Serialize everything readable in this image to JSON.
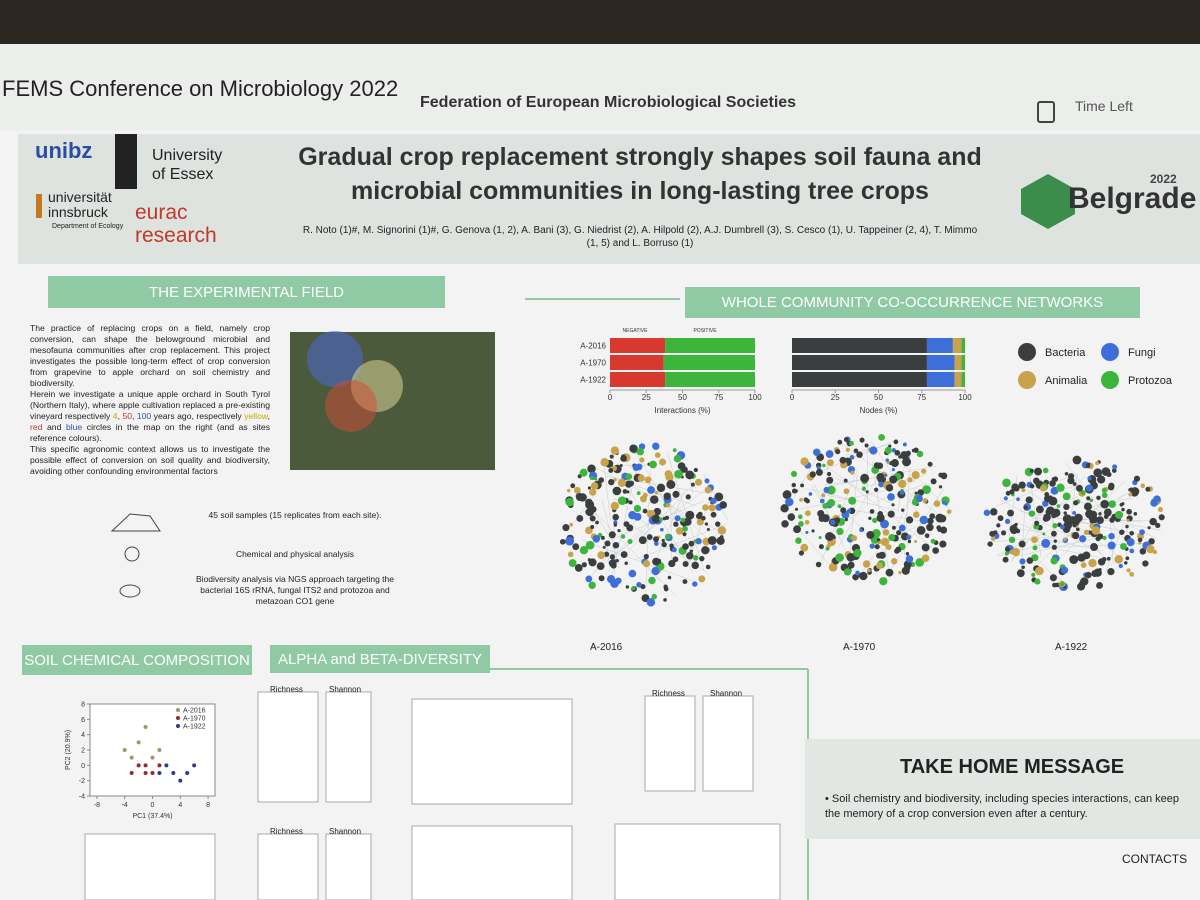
{
  "header": {
    "conference": "FEMS Conference on Microbiology 2022",
    "society": "Federation of European Microbiological Societies",
    "timer": "Time Left"
  },
  "poster": {
    "logos": {
      "unibz": "unibz",
      "essex": [
        "University",
        "of Essex"
      ],
      "innsbruck": [
        "universität",
        "innsbruck"
      ],
      "innsbruck_dept": "Department of Ecology",
      "eurac": [
        "eurac",
        "research"
      ]
    },
    "title": [
      "Gradual crop replacement strongly shapes soil fauna and",
      "microbial communities in long-lasting tree crops"
    ],
    "authors": "R. Noto (1)#, M. Signorini (1)#, G. Genova (1, 2), A. Bani (3), G. Niedrist (2), A. Hilpold (2), A.J. Dumbrell (3), S. Cesco (1), U. Tappeiner (2, 4), T. Mimmo (1, 5) and L. Borruso (1)",
    "event": {
      "year": "2022",
      "city": "Belgrade"
    },
    "field": {
      "heading": "THE EXPERIMENTAL FIELD",
      "intro": [
        "The practice of replacing crops on a field, namely crop conversion, can shape the belowground microbial and mesofauna communities after crop replacement. This project investigates the possible long-term effect of crop conversion from grapevine to apple orchard on soil chemistry and biodiversity.",
        "Herein we investigate a unique apple orchard in South Tyrol (Northern Italy), where apple cultivation replaced a pre-existing vineyard respectively ",
        "4",
        ", ",
        "50",
        ", ",
        "100",
        " years ago, respectively ",
        "yellow",
        ", ",
        "red",
        " and ",
        "blue",
        " circles in the map on the right (and as sites reference colours).",
        "This specific agronomic context allows us to investigate the possible effect of conversion on soil quality and biodiversity, avoiding other confounding environmental factors"
      ],
      "methods": [
        "45 soil samples (15 replicates from each site).",
        "Chemical and physical analysis",
        "Biodiversity analysis via NGS approach targeting the bacterial 16S rRNA, fungal ITS2 and protozoa and metazoan CO1 gene"
      ]
    },
    "networks": {
      "heading": "WHOLE COMMUNITY CO-OCCURRENCE NETWORKS",
      "labels": [
        "A-2016",
        "A-1970",
        "A-1922"
      ]
    },
    "soil": {
      "heading": "SOIL CHEMICAL COMPOSITION"
    },
    "diversity": {
      "heading": "ALPHA and BETA-DIVERSITY",
      "panels": [
        "Richness",
        "Shannon",
        "Richness",
        "Shannon",
        "Richness",
        "Shannon"
      ]
    },
    "take_home": {
      "heading": "TAKE HOME MESSAGE",
      "text": "Soil chemistry and biodiversity, including species interactions, can keep the memory of a crop conversion even after a century."
    },
    "contacts": "CONTACTS"
  },
  "chart_data": [
    {
      "type": "bar",
      "orientation": "horizontal",
      "stacked": true,
      "xlabel": "Interactions (%)",
      "categories": [
        "A-2016",
        "A-1970",
        "A-1922"
      ],
      "series": [
        {
          "name": "NEGATIVE",
          "color": "#d8392f",
          "values": [
            38,
            37,
            38
          ]
        },
        {
          "name": "POSITIVE",
          "color": "#3db53d",
          "values": [
            62,
            63,
            62
          ]
        }
      ],
      "xlim": [
        0,
        100
      ],
      "xticks": [
        0,
        25,
        50,
        75,
        100
      ]
    },
    {
      "type": "bar",
      "orientation": "horizontal",
      "stacked": true,
      "xlabel": "Nodes (%)",
      "categories": [
        null,
        null,
        null
      ],
      "series": [
        {
          "name": "Bacteria",
          "color": "#3b3e3e",
          "values": [
            78,
            78,
            78
          ]
        },
        {
          "name": "Fungi",
          "color": "#3e6fd8",
          "values": [
            15,
            16,
            16
          ]
        },
        {
          "name": "Animalia",
          "color": "#c9a24c",
          "values": [
            5,
            4,
            4
          ]
        },
        {
          "name": "Protozoa",
          "color": "#3db53d",
          "values": [
            2,
            2,
            2
          ]
        }
      ],
      "xlim": [
        0,
        100
      ],
      "xticks": [
        0,
        25,
        50,
        75,
        100
      ],
      "legend": "right"
    },
    {
      "type": "scatter",
      "xlabel": "PC1 (37.4%)",
      "ylabel": "PC2 (20.9%)",
      "series": [
        {
          "name": "A-2016",
          "color": "#9c9a62",
          "x": [
            -4,
            -3,
            -2,
            -1,
            0,
            1
          ],
          "values": [
            2,
            1,
            3,
            5,
            1,
            2
          ]
        },
        {
          "name": "A-1970",
          "color": "#8b2e2e",
          "x": [
            -3,
            -2,
            -1,
            -1,
            0,
            1
          ],
          "values": [
            -1,
            0,
            -1,
            0,
            -1,
            0
          ]
        },
        {
          "name": "A-1922",
          "color": "#2e3a8c",
          "x": [
            1,
            2,
            3,
            4,
            5,
            6
          ],
          "values": [
            -1,
            0,
            -1,
            -2,
            -1,
            0
          ]
        }
      ],
      "xlim": [
        -9,
        9
      ],
      "ylim": [
        -4,
        8
      ],
      "xticks": [
        -8,
        -4,
        0,
        4,
        8
      ],
      "yticks": [
        -4,
        -2,
        0,
        2,
        4,
        6,
        8
      ]
    }
  ]
}
